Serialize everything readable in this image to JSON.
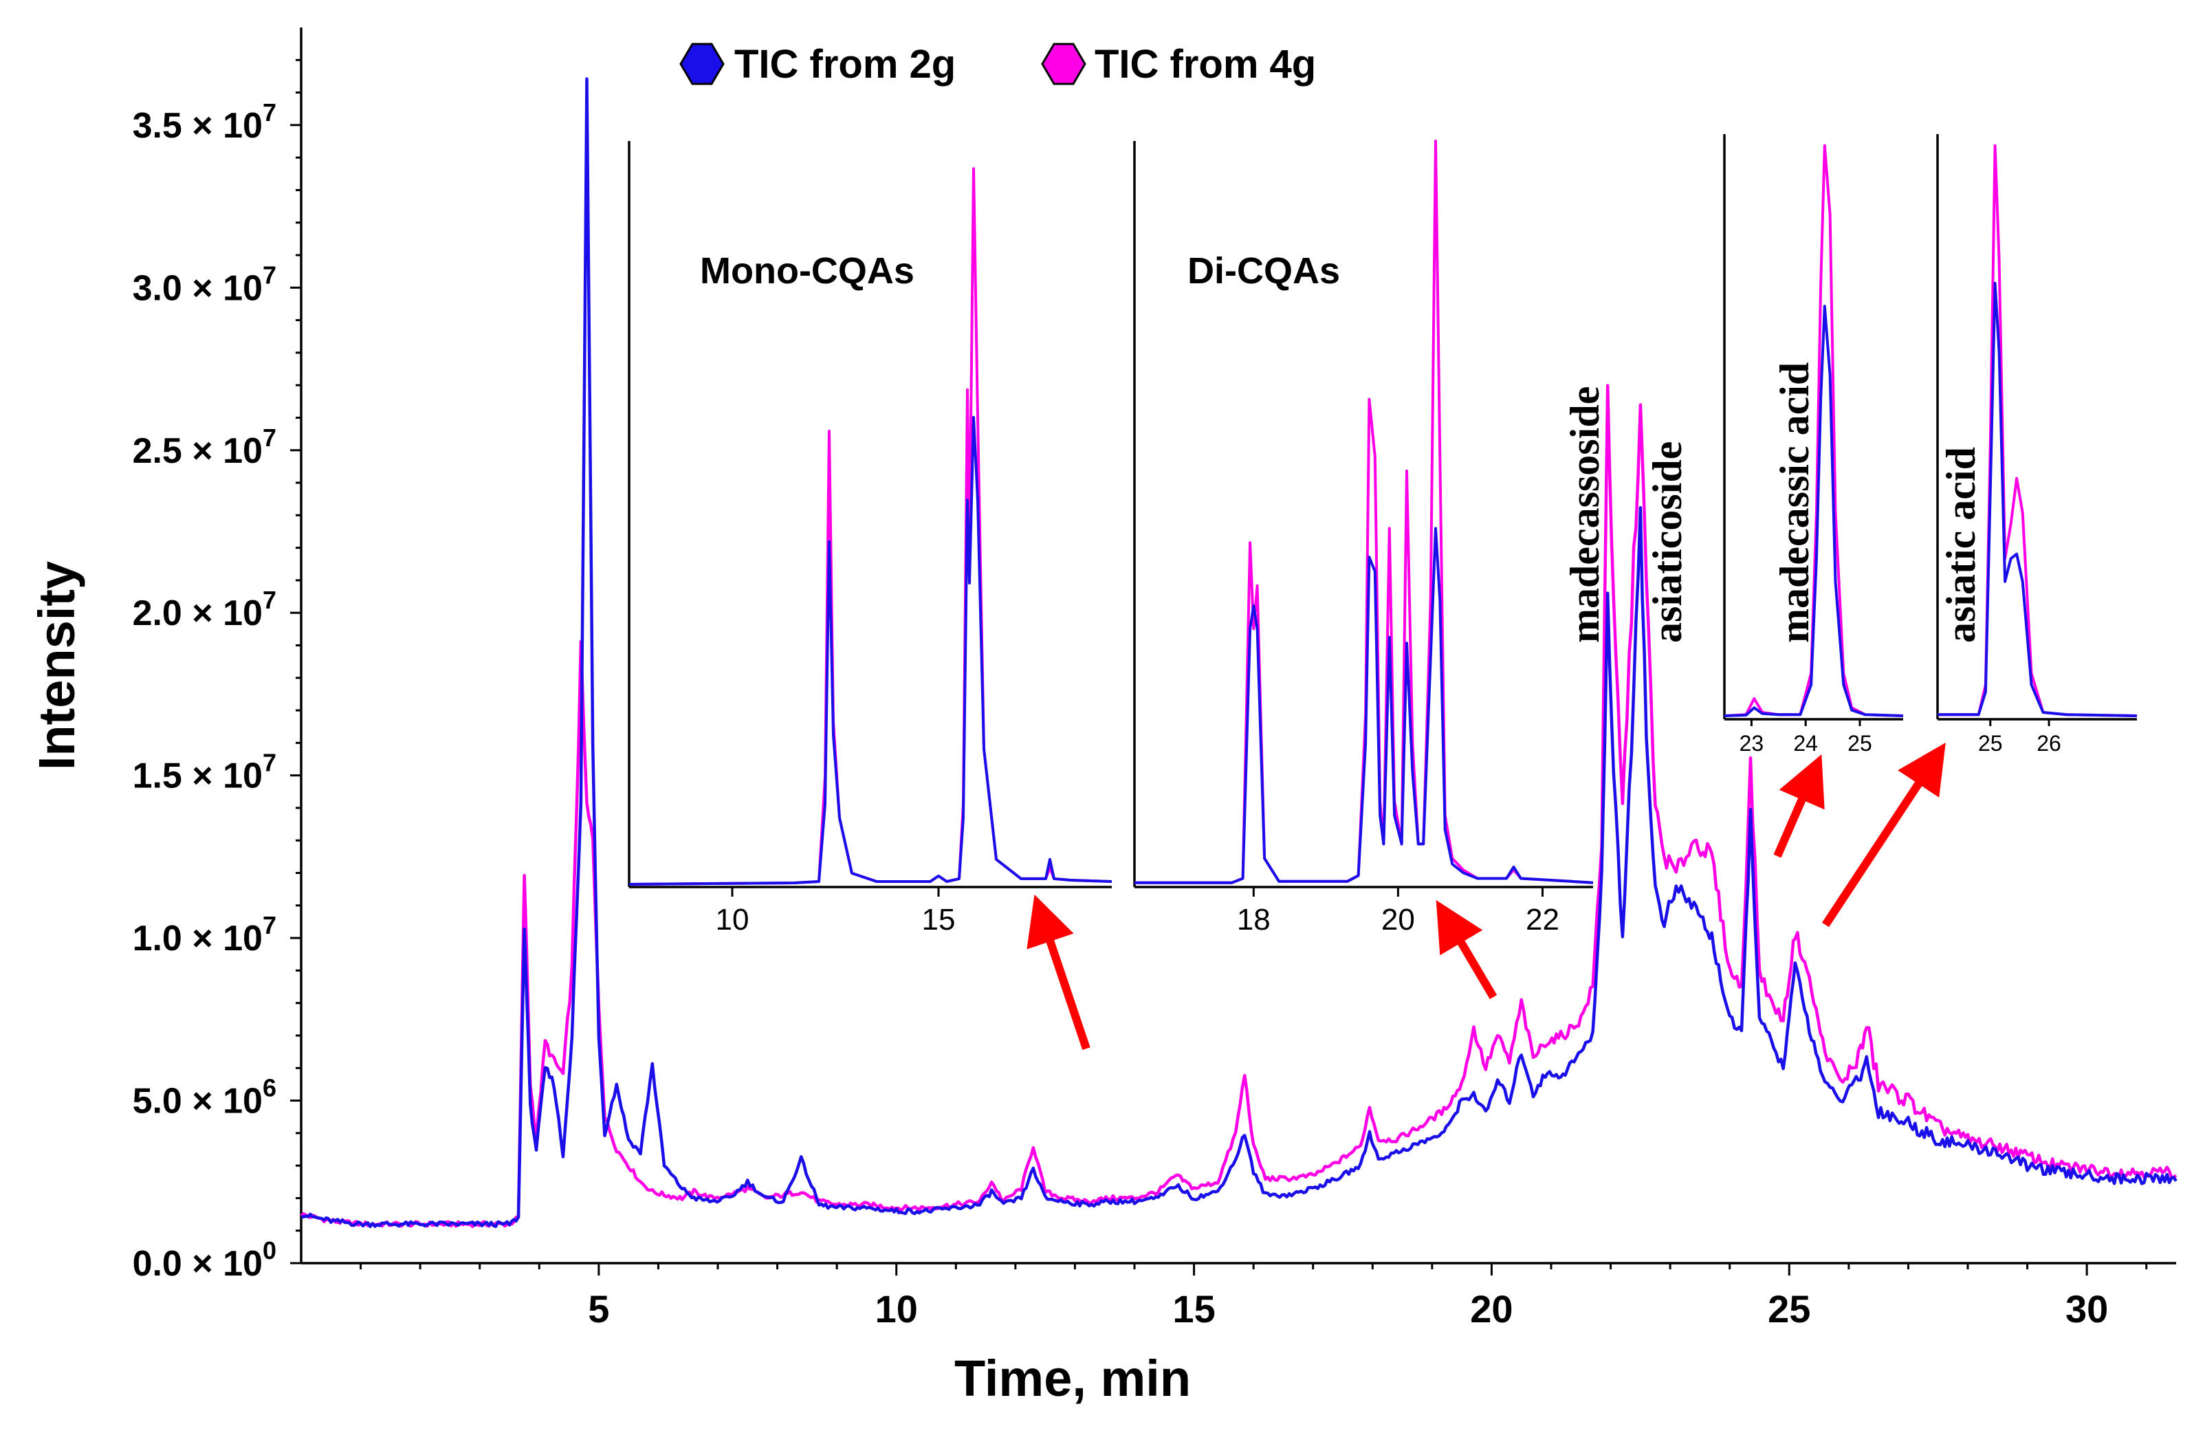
{
  "chart_data": {
    "type": "line",
    "title": "",
    "xlabel": "Time, min",
    "ylabel": "Intensity",
    "xlim": [
      0,
      31.5
    ],
    "ylim": [
      0,
      38000000
    ],
    "x_ticks": [
      "5",
      "10",
      "15",
      "20",
      "25",
      "30"
    ],
    "y_ticks": [
      {
        "mantissa": "0.0",
        "exp": "0"
      },
      {
        "mantissa": "5.0",
        "exp": "6"
      },
      {
        "mantissa": "1.0",
        "exp": "7"
      },
      {
        "mantissa": "1.5",
        "exp": "7"
      },
      {
        "mantissa": "2.0",
        "exp": "7"
      },
      {
        "mantissa": "2.5",
        "exp": "7"
      },
      {
        "mantissa": "3.0",
        "exp": "7"
      },
      {
        "mantissa": "3.5",
        "exp": "7"
      }
    ],
    "y_tick_values": [
      0,
      5000000,
      10000000,
      15000000,
      20000000,
      25000000,
      30000000,
      35000000
    ],
    "times_label": " × 10",
    "series": [
      {
        "name": "TIC from 4g",
        "color": "#ff00e6",
        "x": [
          0,
          0.5,
          1,
          2,
          3,
          3.5,
          3.65,
          3.75,
          3.85,
          3.95,
          4.1,
          4.25,
          4.4,
          4.55,
          4.7,
          4.8,
          4.9,
          5.0,
          5.1,
          5.3,
          5.5,
          5.7,
          5.9,
          6.1,
          6.4,
          6.6,
          6.9,
          7.2,
          7.5,
          7.8,
          8.1,
          8.4,
          8.7,
          9.0,
          9.5,
          10,
          10.5,
          11,
          11.4,
          11.6,
          11.8,
          12.1,
          12.3,
          12.5,
          12.8,
          13.2,
          13.6,
          14,
          14.4,
          14.7,
          15.0,
          15.4,
          15.7,
          15.85,
          16.0,
          16.2,
          16.6,
          17.0,
          17.4,
          17.8,
          17.95,
          18.1,
          18.4,
          18.8,
          19.2,
          19.5,
          19.7,
          19.9,
          20.1,
          20.3,
          20.5,
          20.7,
          20.9,
          21.2,
          21.5,
          21.7,
          21.85,
          21.95,
          22.05,
          22.2,
          22.35,
          22.5,
          22.6,
          22.75,
          22.9,
          23.1,
          23.4,
          23.7,
          24.0,
          24.2,
          24.35,
          24.5,
          24.7,
          24.9,
          25.0,
          25.1,
          25.3,
          25.6,
          25.9,
          26.2,
          26.3,
          26.5,
          27.0,
          27.5,
          28.0,
          28.5,
          29.0,
          29.5,
          30.0,
          30.5,
          31.0,
          31.5
        ],
        "y": [
          1500000,
          1300000,
          1200000,
          1200000,
          1200000,
          1200000,
          1400000,
          12000000,
          5500000,
          3800000,
          6800000,
          6200000,
          5800000,
          9000000,
          18700000,
          14000000,
          13000000,
          8000000,
          4500000,
          3500000,
          3000000,
          2500000,
          2200000,
          2100000,
          2000000,
          2200000,
          2000000,
          2100000,
          2300000,
          2000000,
          2100000,
          2200000,
          1900000,
          1800000,
          1800000,
          1700000,
          1700000,
          1800000,
          1900000,
          2500000,
          1900000,
          2300000,
          3600000,
          2200000,
          2000000,
          1900000,
          2000000,
          2000000,
          2200000,
          2700000,
          2300000,
          2500000,
          4000000,
          5800000,
          3600000,
          2600000,
          2600000,
          2700000,
          3100000,
          3600000,
          4800000,
          3800000,
          3800000,
          4200000,
          4700000,
          5500000,
          7200000,
          6000000,
          7000000,
          6200000,
          8000000,
          6300000,
          6800000,
          7000000,
          7500000,
          8500000,
          13000000,
          27100000,
          20000000,
          14000000,
          20000000,
          26200000,
          21000000,
          14000000,
          12500000,
          12000000,
          13000000,
          12500000,
          9000000,
          8500000,
          15300000,
          9000000,
          8000000,
          7500000,
          8800000,
          10200000,
          9000000,
          6500000,
          5500000,
          6500000,
          7300000,
          5500000,
          5000000,
          4200000,
          3800000,
          3600000,
          3300000,
          3000000,
          2900000,
          2800000,
          2800000,
          2800000
        ]
      },
      {
        "name": "TIC from 2g",
        "color": "#1a0fe8",
        "x": [
          0,
          0.5,
          1,
          2,
          3,
          3.5,
          3.65,
          3.75,
          3.85,
          3.95,
          4.1,
          4.25,
          4.4,
          4.55,
          4.7,
          4.8,
          4.9,
          5.0,
          5.1,
          5.3,
          5.5,
          5.7,
          5.9,
          6.1,
          6.4,
          6.6,
          6.9,
          7.2,
          7.5,
          7.8,
          8.1,
          8.4,
          8.7,
          9.0,
          9.5,
          10,
          10.5,
          11,
          11.4,
          11.6,
          11.8,
          12.1,
          12.3,
          12.5,
          12.8,
          13.2,
          13.6,
          14,
          14.4,
          14.7,
          15.0,
          15.4,
          15.7,
          15.85,
          16.0,
          16.2,
          16.6,
          17.0,
          17.4,
          17.8,
          17.95,
          18.1,
          18.4,
          18.8,
          19.2,
          19.5,
          19.7,
          19.9,
          20.1,
          20.3,
          20.5,
          20.7,
          20.9,
          21.2,
          21.5,
          21.7,
          21.85,
          21.95,
          22.05,
          22.2,
          22.35,
          22.5,
          22.6,
          22.75,
          22.9,
          23.1,
          23.4,
          23.7,
          24.0,
          24.2,
          24.35,
          24.5,
          24.7,
          24.9,
          25.0,
          25.1,
          25.3,
          25.6,
          25.9,
          26.2,
          26.3,
          26.5,
          27.0,
          27.5,
          28.0,
          28.5,
          29.0,
          29.5,
          30.0,
          30.5,
          31.0,
          31.5
        ],
        "y": [
          1500000,
          1300000,
          1200000,
          1200000,
          1200000,
          1200000,
          1400000,
          10500000,
          4800000,
          3500000,
          6000000,
          5500000,
          3300000,
          7000000,
          14000000,
          36300000,
          16000000,
          7000000,
          4000000,
          5500000,
          3800000,
          3400000,
          6100000,
          3000000,
          2300000,
          2000000,
          1900000,
          2000000,
          2500000,
          2000000,
          1900000,
          3200000,
          1800000,
          1700000,
          1700000,
          1600000,
          1600000,
          1700000,
          1800000,
          2200000,
          1800000,
          2000000,
          2900000,
          2000000,
          1900000,
          1800000,
          1900000,
          1900000,
          2000000,
          2400000,
          2000000,
          2200000,
          3200000,
          4000000,
          2800000,
          2100000,
          2100000,
          2300000,
          2600000,
          3000000,
          4000000,
          3200000,
          3400000,
          3700000,
          4000000,
          5000000,
          5200000,
          4600000,
          5600000,
          5000000,
          6500000,
          5200000,
          5800000,
          5800000,
          6500000,
          7000000,
          12000000,
          20500000,
          15000000,
          10000000,
          16000000,
          23300000,
          16000000,
          11500000,
          10500000,
          11500000,
          11000000,
          10000000,
          7500000,
          7000000,
          13800000,
          7500000,
          6800000,
          6000000,
          7500000,
          9200000,
          7500000,
          5500000,
          5000000,
          5800000,
          6200000,
          4700000,
          4300000,
          3800000,
          3600000,
          3400000,
          3000000,
          2800000,
          2700000,
          2600000,
          2600000,
          2600000
        ]
      }
    ],
    "insets": [
      {
        "title": "Mono-CQAs",
        "x_ticks": [
          "10",
          "15"
        ],
        "x_tick_values": [
          10,
          15
        ],
        "xlim": [
          7.5,
          19.2
        ],
        "ylim": [
          0,
          27000000
        ],
        "series": [
          {
            "name": "TIC from 4g",
            "color": "#ff00e6",
            "x": [
              7.5,
              11.5,
              12.1,
              12.25,
              12.35,
              12.45,
              12.6,
              12.9,
              13.5,
              14.8,
              15.0,
              15.2,
              15.5,
              15.6,
              15.7,
              15.75,
              15.85,
              15.95,
              16.1,
              16.4,
              17,
              17.6,
              17.7,
              17.8,
              18.2,
              19.2
            ],
            "y": [
              100000,
              150000,
              200000,
              4000000,
              16500000,
              6000000,
              2500000,
              500000,
              200000,
              200000,
              400000,
              200000,
              300000,
              3000000,
              18000000,
              12000000,
              26000000,
              17000000,
              5000000,
              1000000,
              300000,
              300000,
              700000,
              300000,
              250000,
              200000
            ]
          },
          {
            "name": "TIC from 2g",
            "color": "#1a0fe8",
            "x": [
              7.5,
              11.5,
              12.1,
              12.25,
              12.35,
              12.45,
              12.6,
              12.9,
              13.5,
              14.8,
              15.0,
              15.2,
              15.5,
              15.6,
              15.7,
              15.75,
              15.85,
              15.95,
              16.1,
              16.4,
              17,
              17.6,
              17.7,
              17.8,
              18.2,
              19.2
            ],
            "y": [
              100000,
              150000,
              200000,
              3000000,
              12500000,
              5500000,
              2500000,
              500000,
              200000,
              200000,
              400000,
              200000,
              300000,
              2500000,
              14000000,
              11000000,
              17000000,
              14000000,
              5000000,
              1000000,
              300000,
              300000,
              1000000,
              300000,
              250000,
              200000
            ]
          }
        ]
      },
      {
        "title": "Di-CQAs",
        "x_ticks": [
          "18",
          "20",
          "22"
        ],
        "x_tick_values": [
          18,
          20,
          22
        ],
        "xlim": [
          16.35,
          22.7
        ],
        "ylim": [
          0,
          26000000
        ],
        "series": [
          {
            "name": "TIC from 4g",
            "color": "#ff00e6",
            "x": [
              16.35,
              17.7,
              17.85,
              17.95,
              18.0,
              18.05,
              18.15,
              18.35,
              19.3,
              19.45,
              19.55,
              19.6,
              19.68,
              19.75,
              19.8,
              19.88,
              19.95,
              20.05,
              20.12,
              20.2,
              20.28,
              20.35,
              20.45,
              20.52,
              20.58,
              20.65,
              20.75,
              20.9,
              21.1,
              21.5,
              21.6,
              21.7,
              22.7
            ],
            "y": [
              150000,
              150000,
              300000,
              12000000,
              9000000,
              10500000,
              1000000,
              200000,
              200000,
              400000,
              6000000,
              17000000,
              15000000,
              3000000,
              1500000,
              12500000,
              3000000,
              1500000,
              14500000,
              5000000,
              1500000,
              1500000,
              10000000,
              26000000,
              15000000,
              2500000,
              1000000,
              600000,
              300000,
              300000,
              600000,
              300000,
              150000
            ]
          },
          {
            "name": "TIC from 2g",
            "color": "#1a0fe8",
            "x": [
              16.35,
              17.7,
              17.85,
              17.95,
              18.0,
              18.05,
              18.15,
              18.35,
              19.3,
              19.45,
              19.55,
              19.6,
              19.68,
              19.75,
              19.8,
              19.88,
              19.95,
              20.05,
              20.12,
              20.2,
              20.28,
              20.35,
              20.45,
              20.52,
              20.58,
              20.65,
              20.75,
              20.9,
              21.1,
              21.5,
              21.6,
              21.7,
              22.7
            ],
            "y": [
              150000,
              150000,
              300000,
              9000000,
              9800000,
              9000000,
              1000000,
              200000,
              200000,
              400000,
              5000000,
              11500000,
              11000000,
              2500000,
              1500000,
              8700000,
              2500000,
              1500000,
              8500000,
              4000000,
              1500000,
              1500000,
              8000000,
              12500000,
              10000000,
              2000000,
              800000,
              500000,
              300000,
              300000,
              700000,
              300000,
              150000
            ]
          }
        ]
      },
      {
        "title": "madecassic acid",
        "x_ticks": [
          "23",
          "24",
          "25"
        ],
        "x_tick_values": [
          23,
          24,
          25
        ],
        "xlim": [
          22.5,
          25.8
        ],
        "ylim": [
          0,
          25500000
        ],
        "series": [
          {
            "name": "TIC from 4g",
            "color": "#ff00e6",
            "x": [
              22.5,
              22.9,
              23.05,
              23.2,
              23.5,
              23.9,
              24.1,
              24.2,
              24.28,
              24.35,
              24.45,
              24.55,
              24.7,
              24.85,
              25.1,
              25.8
            ],
            "y": [
              150000,
              200000,
              900000,
              300000,
              200000,
              200000,
              2000000,
              9000000,
              19000000,
              25000000,
              22000000,
              9000000,
              2000000,
              500000,
              200000,
              150000
            ]
          },
          {
            "name": "TIC from 2g",
            "color": "#1a0fe8",
            "x": [
              22.5,
              22.9,
              23.05,
              23.2,
              23.5,
              23.9,
              24.1,
              24.2,
              24.28,
              24.35,
              24.45,
              24.55,
              24.7,
              24.85,
              25.1,
              25.8
            ],
            "y": [
              150000,
              180000,
              500000,
              250000,
              200000,
              200000,
              1500000,
              7000000,
              14000000,
              18000000,
              15000000,
              6000000,
              1500000,
              400000,
              200000,
              150000
            ]
          }
        ]
      },
      {
        "title": "asiatic acid",
        "x_ticks": [
          "25",
          "26"
        ],
        "x_tick_values": [
          25,
          26
        ],
        "xlim": [
          24.1,
          27.5
        ],
        "ylim": [
          0,
          25500000
        ],
        "series": [
          {
            "name": "TIC from 4g",
            "color": "#ff00e6",
            "x": [
              24.1,
              24.8,
              24.92,
              25.0,
              25.08,
              25.15,
              25.25,
              25.35,
              25.45,
              25.55,
              25.7,
              25.9,
              26.3,
              27.5
            ],
            "y": [
              200000,
              200000,
              1500000,
              12000000,
              25000000,
              20000000,
              7000000,
              8500000,
              10500000,
              9000000,
              2000000,
              300000,
              200000,
              150000
            ]
          },
          {
            "name": "TIC from 2g",
            "color": "#1a0fe8",
            "x": [
              24.1,
              24.8,
              24.92,
              25.0,
              25.08,
              25.15,
              25.25,
              25.35,
              25.45,
              25.55,
              25.7,
              25.9,
              26.3,
              27.5
            ],
            "y": [
              200000,
              200000,
              1200000,
              10000000,
              19000000,
              16000000,
              6000000,
              7000000,
              7200000,
              6000000,
              1500000,
              300000,
              200000,
              150000
            ]
          }
        ]
      }
    ],
    "annotations": [
      "madecassoside",
      "asiaticoside"
    ],
    "legend": [
      "TIC from 2g",
      "TIC from 4g"
    ],
    "legend_position": "top-center"
  }
}
